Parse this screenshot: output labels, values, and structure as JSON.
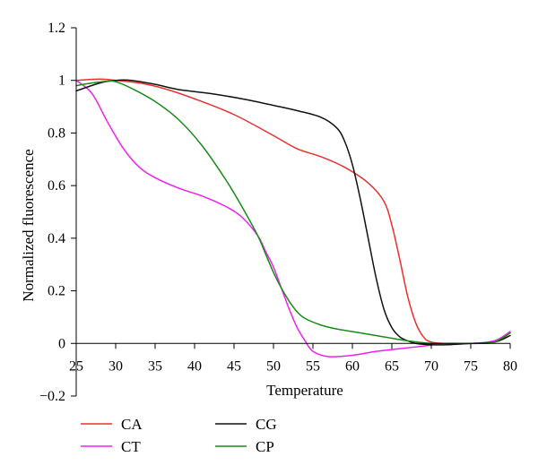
{
  "chart_data": {
    "type": "line",
    "xlabel": "Temperature",
    "ylabel": "Normalized fluorescence",
    "xlim": [
      25,
      80
    ],
    "ylim": [
      -0.2,
      1.2
    ],
    "x_ticks": [
      25,
      30,
      35,
      40,
      45,
      50,
      55,
      60,
      65,
      70,
      75,
      80
    ],
    "y_ticks": [
      -0.2,
      0,
      0.2,
      0.4,
      0.6,
      0.8,
      1,
      1.2
    ],
    "y_tick_labels": [
      "−0.2",
      "0",
      "0.2",
      "0.4",
      "0.6",
      "0.8",
      "1",
      "1.2"
    ],
    "grid": false,
    "legend_position": "bottom-left",
    "series": [
      {
        "name": "CA",
        "color": "#e8312f",
        "x": [
          25,
          28,
          30,
          33,
          36,
          40,
          45,
          50,
          53,
          56,
          59,
          62,
          64,
          65,
          66,
          67,
          68,
          69,
          70,
          72,
          75,
          78,
          80
        ],
        "y": [
          1.0,
          1.005,
          1.0,
          0.99,
          0.97,
          0.93,
          0.87,
          0.79,
          0.74,
          0.71,
          0.67,
          0.61,
          0.54,
          0.45,
          0.32,
          0.18,
          0.08,
          0.025,
          0.005,
          0.0,
          0.0,
          0.005,
          0.04
        ]
      },
      {
        "name": "CT",
        "color": "#f21ff2",
        "x": [
          25,
          27,
          29,
          31,
          33,
          35,
          38,
          41,
          44,
          46,
          48,
          49,
          50,
          51,
          52,
          53,
          54,
          55,
          57,
          60,
          63,
          66,
          69,
          72,
          75,
          78,
          80
        ],
        "y": [
          1.0,
          0.95,
          0.84,
          0.74,
          0.67,
          0.63,
          0.59,
          0.56,
          0.52,
          0.48,
          0.41,
          0.35,
          0.29,
          0.21,
          0.13,
          0.06,
          0.01,
          -0.03,
          -0.05,
          -0.045,
          -0.03,
          -0.02,
          -0.01,
          0.0,
          0.0,
          0.01,
          0.045
        ]
      },
      {
        "name": "CG",
        "color": "#111111",
        "x": [
          25,
          28,
          30,
          32,
          35,
          38,
          42,
          46,
          50,
          53,
          56,
          58,
          59,
          60,
          61,
          62,
          63,
          64,
          65,
          66,
          67,
          68,
          70,
          72,
          75,
          78,
          80
        ],
        "y": [
          0.96,
          0.99,
          1.0,
          1.0,
          0.985,
          0.965,
          0.95,
          0.93,
          0.905,
          0.885,
          0.86,
          0.82,
          0.77,
          0.68,
          0.55,
          0.4,
          0.25,
          0.13,
          0.06,
          0.025,
          0.01,
          0.0,
          -0.005,
          -0.005,
          0.0,
          0.005,
          0.03
        ]
      },
      {
        "name": "CP",
        "color": "#1a8a1a",
        "x": [
          25,
          27,
          29,
          30,
          32,
          35,
          38,
          41,
          44,
          46,
          48,
          49,
          50,
          51,
          52,
          53,
          54,
          56,
          58,
          61,
          64,
          67,
          70,
          73,
          76,
          78,
          80
        ],
        "y": [
          0.98,
          0.99,
          0.997,
          0.995,
          0.97,
          0.92,
          0.85,
          0.75,
          0.62,
          0.52,
          0.41,
          0.34,
          0.27,
          0.21,
          0.16,
          0.12,
          0.095,
          0.07,
          0.055,
          0.04,
          0.025,
          0.01,
          0.0,
          0.0,
          0.0,
          0.005,
          0.04
        ]
      }
    ]
  }
}
